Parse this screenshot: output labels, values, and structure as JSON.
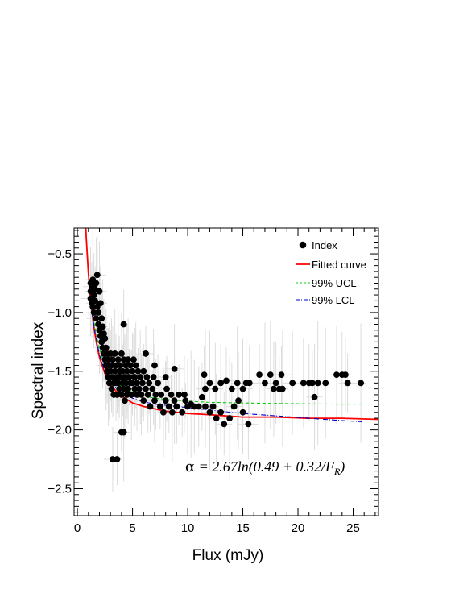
{
  "chart_data": {
    "type": "scatter",
    "xlabel": "Flux (mJy)",
    "ylabel": "Spectral index",
    "xlim": [
      -0.3,
      27.3
    ],
    "ylim": [
      -2.73,
      -0.28
    ],
    "x_ticks": [
      0,
      5,
      10,
      15,
      20,
      25
    ],
    "x_tick_labels": [
      "0",
      "5",
      "10",
      "15",
      "20",
      "25"
    ],
    "y_ticks": [
      -0.5,
      -1.0,
      -1.5,
      -2.0,
      -2.5
    ],
    "y_tick_labels": [
      "−0.5",
      "−1.0",
      "−1.5",
      "−2.0",
      "−2.5"
    ],
    "grid": false,
    "legend_position": "top-right",
    "legend": [
      {
        "label": "Index",
        "kind": "marker",
        "color": "#000000"
      },
      {
        "label": "Fitted curve",
        "kind": "line",
        "color": "#ff0000"
      },
      {
        "label": "99% UCL",
        "kind": "dashed",
        "color": "#00cc00"
      },
      {
        "label": "99% LCL",
        "kind": "dashdot",
        "color": "#0000cc"
      }
    ],
    "annotation": {
      "greek": "α",
      "equation": " = 2.67ln(0.49 + 0.32/F",
      "subscript": "R",
      "closing": ")"
    },
    "series": [
      {
        "name": "Index",
        "marker": "circle",
        "color": "#000000",
        "errorbar_color": "#d9d9d9",
        "points": [
          [
            1.2,
            -0.75
          ],
          [
            1.2,
            -0.82
          ],
          [
            1.2,
            -0.88
          ],
          [
            1.3,
            -0.92
          ],
          [
            1.3,
            -0.78
          ],
          [
            1.4,
            -0.95
          ],
          [
            1.4,
            -0.72
          ],
          [
            1.5,
            -0.85
          ],
          [
            1.5,
            -1.0
          ],
          [
            1.6,
            -0.9
          ],
          [
            1.6,
            -0.8
          ],
          [
            1.7,
            -1.05
          ],
          [
            1.7,
            -0.75
          ],
          [
            1.8,
            -0.68
          ],
          [
            1.8,
            -0.95
          ],
          [
            1.9,
            -1.1
          ],
          [
            1.9,
            -1.0
          ],
          [
            2.0,
            -0.82
          ],
          [
            2.0,
            -1.15
          ],
          [
            2.1,
            -0.92
          ],
          [
            2.1,
            -1.2
          ],
          [
            2.2,
            -1.05
          ],
          [
            2.2,
            -1.25
          ],
          [
            2.3,
            -1.12
          ],
          [
            2.3,
            -1.3
          ],
          [
            2.4,
            -1.18
          ],
          [
            2.4,
            -1.35
          ],
          [
            2.5,
            -1.4
          ],
          [
            2.5,
            -1.22
          ],
          [
            2.6,
            -1.45
          ],
          [
            2.6,
            -1.3
          ],
          [
            2.7,
            -1.5
          ],
          [
            2.7,
            -1.35
          ],
          [
            2.8,
            -1.4
          ],
          [
            2.8,
            -1.55
          ],
          [
            2.9,
            -1.45
          ],
          [
            2.9,
            -1.6
          ],
          [
            3.0,
            -1.5
          ],
          [
            3.0,
            -1.35
          ],
          [
            3.1,
            -1.65
          ],
          [
            3.1,
            -1.45
          ],
          [
            3.2,
            -1.55
          ],
          [
            3.2,
            -1.4
          ],
          [
            3.3,
            -1.6
          ],
          [
            3.3,
            -1.7
          ],
          [
            3.4,
            -1.5
          ],
          [
            3.4,
            -1.35
          ],
          [
            3.5,
            -1.6
          ],
          [
            3.5,
            -1.45
          ],
          [
            3.6,
            -1.55
          ],
          [
            3.6,
            -1.7
          ],
          [
            3.7,
            -1.4
          ],
          [
            3.7,
            -1.6
          ],
          [
            3.8,
            -1.5
          ],
          [
            3.8,
            -1.65
          ],
          [
            3.9,
            -1.55
          ],
          [
            3.9,
            -1.45
          ],
          [
            4.0,
            -1.7
          ],
          [
            4.0,
            -1.35
          ],
          [
            4.1,
            -1.6
          ],
          [
            4.1,
            -1.5
          ],
          [
            4.2,
            -1.4
          ],
          [
            4.2,
            -1.65
          ],
          [
            4.3,
            -1.55
          ],
          [
            4.3,
            -1.75
          ],
          [
            4.4,
            -1.45
          ],
          [
            4.4,
            -1.6
          ],
          [
            4.5,
            -1.7
          ],
          [
            4.5,
            -1.5
          ],
          [
            4.6,
            -1.4
          ],
          [
            4.6,
            -1.65
          ],
          [
            4.7,
            -1.55
          ],
          [
            4.8,
            -1.6
          ],
          [
            4.8,
            -1.45
          ],
          [
            4.9,
            -1.7
          ],
          [
            5.0,
            -1.5
          ],
          [
            5.0,
            -1.6
          ],
          [
            5.1,
            -1.4
          ],
          [
            5.2,
            -1.65
          ],
          [
            5.2,
            -1.55
          ],
          [
            5.3,
            -1.45
          ],
          [
            5.4,
            -1.7
          ],
          [
            5.4,
            -1.6
          ],
          [
            5.5,
            -1.5
          ],
          [
            5.6,
            -1.65
          ],
          [
            5.7,
            -1.55
          ],
          [
            5.8,
            -1.7
          ],
          [
            5.9,
            -1.6
          ],
          [
            6.0,
            -1.5
          ],
          [
            6.0,
            -1.75
          ],
          [
            6.2,
            -1.65
          ],
          [
            6.3,
            -1.55
          ],
          [
            6.4,
            -1.7
          ],
          [
            6.5,
            -1.6
          ],
          [
            6.6,
            -1.8
          ],
          [
            6.8,
            -1.65
          ],
          [
            6.9,
            -1.55
          ],
          [
            7.0,
            -1.75
          ],
          [
            7.1,
            -1.7
          ],
          [
            7.3,
            -1.6
          ],
          [
            7.5,
            -1.8
          ],
          [
            7.6,
            -1.7
          ],
          [
            7.8,
            -1.85
          ],
          [
            8.0,
            -1.75
          ],
          [
            8.1,
            -1.65
          ],
          [
            8.3,
            -1.8
          ],
          [
            8.5,
            -1.7
          ],
          [
            8.6,
            -1.85
          ],
          [
            8.8,
            -1.75
          ],
          [
            9.0,
            -1.8
          ],
          [
            9.2,
            -1.7
          ],
          [
            9.5,
            -1.85
          ],
          [
            9.8,
            -1.75
          ],
          [
            10.0,
            -1.8
          ],
          [
            10.3,
            -1.78
          ],
          [
            10.6,
            -1.8
          ],
          [
            11.0,
            -1.8
          ],
          [
            11.3,
            -1.72
          ],
          [
            11.6,
            -1.8
          ],
          [
            12.0,
            -1.85
          ],
          [
            12.3,
            -1.8
          ],
          [
            12.6,
            -1.9
          ],
          [
            13.0,
            -1.85
          ],
          [
            13.3,
            -1.95
          ],
          [
            13.8,
            -1.9
          ],
          [
            14.2,
            -1.8
          ],
          [
            14.6,
            -1.75
          ],
          [
            15.0,
            -1.85
          ],
          [
            15.5,
            -1.95
          ],
          [
            11.5,
            -1.53
          ],
          [
            11.6,
            -1.65
          ],
          [
            12.0,
            -1.6
          ],
          [
            12.5,
            -1.65
          ],
          [
            13.0,
            -1.6
          ],
          [
            13.5,
            -1.58
          ],
          [
            14.0,
            -1.65
          ],
          [
            14.5,
            -1.6
          ],
          [
            15.0,
            -1.65
          ],
          [
            15.3,
            -1.6
          ],
          [
            15.6,
            -1.6
          ],
          [
            16.5,
            -1.53
          ],
          [
            17.0,
            -1.6
          ],
          [
            17.5,
            -1.53
          ],
          [
            17.8,
            -1.65
          ],
          [
            18.0,
            -1.6
          ],
          [
            18.3,
            -1.65
          ],
          [
            18.5,
            -1.53
          ],
          [
            18.6,
            -1.65
          ],
          [
            19.5,
            -1.6
          ],
          [
            20.5,
            -1.6
          ],
          [
            21.0,
            -1.6
          ],
          [
            21.3,
            -1.6
          ],
          [
            21.8,
            -1.6
          ],
          [
            22.5,
            -1.6
          ],
          [
            23.5,
            -1.53
          ],
          [
            24.0,
            -1.53
          ],
          [
            24.3,
            -1.53
          ],
          [
            24.5,
            -1.6
          ],
          [
            25.7,
            -1.6
          ],
          [
            21.5,
            -1.72
          ],
          [
            4.2,
            -1.1
          ],
          [
            6.2,
            -1.35
          ],
          [
            7.0,
            -1.45
          ],
          [
            8.0,
            -1.55
          ],
          [
            8.8,
            -1.48
          ],
          [
            9.7,
            -1.7
          ],
          [
            3.2,
            -2.25
          ],
          [
            3.6,
            -2.25
          ],
          [
            4.0,
            -2.02
          ],
          [
            4.2,
            -2.02
          ]
        ]
      },
      {
        "name": "Fitted curve",
        "type": "line",
        "color": "#ff0000",
        "equation": "y = 2.67*ln(0.49 + 0.32/x)",
        "x": [
          0.65,
          0.8,
          1.0,
          1.25,
          1.5,
          1.75,
          2.0,
          2.5,
          3.0,
          3.5,
          4.0,
          5.0,
          6.0,
          7.0,
          8.0,
          10.0,
          12.0,
          15.0,
          18.0,
          21.0,
          24.0,
          27.3
        ],
        "values": [
          -0.05,
          -0.36,
          -0.67,
          -0.94,
          -1.13,
          -1.27,
          -1.38,
          -1.52,
          -1.61,
          -1.67,
          -1.71,
          -1.77,
          -1.8,
          -1.82,
          -1.84,
          -1.86,
          -1.87,
          -1.89,
          -1.89,
          -1.9,
          -1.9,
          -1.91
        ]
      },
      {
        "name": "99% UCL",
        "type": "line",
        "color": "#00cc00",
        "x": [
          1.2,
          1.5,
          2.0,
          2.5,
          3.0,
          3.5,
          4.0,
          5.0,
          6.0,
          7.0,
          8.0,
          10.0,
          12.0,
          15.0,
          18.0,
          21.0,
          24.0,
          25.8
        ],
        "values": [
          -0.9,
          -1.08,
          -1.31,
          -1.45,
          -1.53,
          -1.59,
          -1.63,
          -1.68,
          -1.71,
          -1.73,
          -1.74,
          -1.755,
          -1.765,
          -1.77,
          -1.775,
          -1.778,
          -1.78,
          -1.78
        ]
      },
      {
        "name": "99% LCL",
        "type": "line",
        "color": "#0000cc",
        "x": [
          1.2,
          1.5,
          2.0,
          2.5,
          3.0,
          3.5,
          4.0,
          5.0,
          6.0,
          7.0,
          8.0,
          10.0,
          12.0,
          15.0,
          18.0,
          21.0,
          24.0,
          25.8
        ],
        "values": [
          -0.92,
          -1.12,
          -1.36,
          -1.5,
          -1.58,
          -1.64,
          -1.68,
          -1.73,
          -1.76,
          -1.78,
          -1.79,
          -1.81,
          -1.83,
          -1.86,
          -1.88,
          -1.9,
          -1.92,
          -1.93
        ]
      }
    ]
  }
}
